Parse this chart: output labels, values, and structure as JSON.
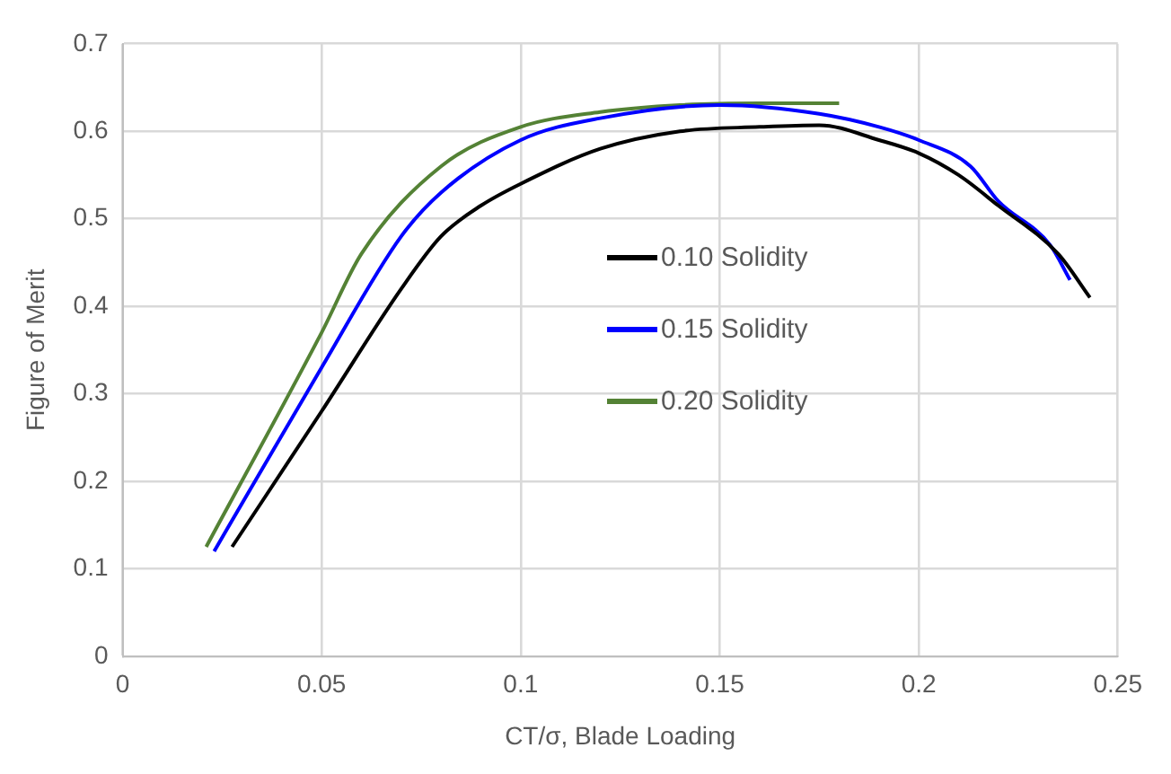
{
  "chart_data": {
    "type": "line",
    "xlabel": "CT/σ, Blade Loading",
    "ylabel": "Figure of Merit",
    "xlim": [
      0,
      0.25
    ],
    "xticks": [
      0,
      0.05,
      0.1,
      0.15,
      0.2,
      0.25
    ],
    "ylim": [
      0,
      0.7
    ],
    "yticks": [
      0,
      0.1,
      0.2,
      0.3,
      0.4,
      0.5,
      0.6,
      0.7
    ],
    "grid": true,
    "legend": "right",
    "marker": "none",
    "line_style": "solid",
    "series": [
      {
        "name": "0.10 Solidity",
        "color": "#000000",
        "x": [
          0.0275,
          0.05,
          0.07,
          0.08,
          0.09,
          0.1,
          0.12,
          0.14,
          0.16,
          0.175,
          0.19,
          0.2,
          0.21,
          0.22,
          0.235,
          0.243
        ],
        "values": [
          0.125,
          0.28,
          0.42,
          0.48,
          0.515,
          0.54,
          0.58,
          0.6,
          0.605,
          0.607,
          0.59,
          0.575,
          0.55,
          0.515,
          0.46,
          0.41
        ]
      },
      {
        "name": "0.15 Solidity",
        "color": "#0000ff",
        "x": [
          0.023,
          0.05,
          0.07,
          0.08,
          0.1,
          0.12,
          0.15,
          0.175,
          0.19,
          0.2,
          0.213,
          0.22,
          0.233,
          0.238
        ],
        "values": [
          0.12,
          0.33,
          0.48,
          0.53,
          0.59,
          0.615,
          0.63,
          0.62,
          0.605,
          0.59,
          0.56,
          0.52,
          0.47,
          0.43
        ]
      },
      {
        "name": "0.20 Solidity",
        "color": "#548235",
        "x": [
          0.021,
          0.05,
          0.06,
          0.08,
          0.1,
          0.12,
          0.14,
          0.16,
          0.18
        ],
        "values": [
          0.125,
          0.37,
          0.46,
          0.56,
          0.605,
          0.622,
          0.63,
          0.632,
          0.632
        ]
      }
    ]
  }
}
